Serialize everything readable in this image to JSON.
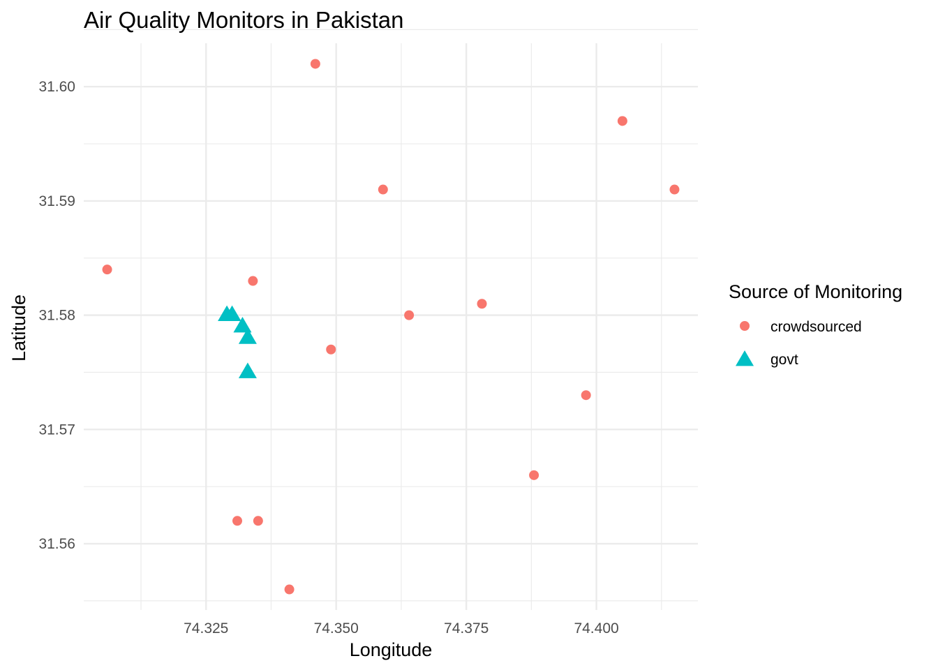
{
  "chart_data": {
    "type": "scatter",
    "title": "Air Quality Monitors in Pakistan",
    "xlabel": "Longitude",
    "ylabel": "Latitude",
    "xlim": [
      74.3015,
      74.4195
    ],
    "ylim": [
      31.5542,
      31.6038
    ],
    "x_ticks": [
      "74.325",
      "74.350",
      "74.375",
      "74.400"
    ],
    "y_ticks": [
      "31.56",
      "31.57",
      "31.58",
      "31.59",
      "31.60"
    ],
    "grid": true,
    "legend": {
      "title": "Source of Monitoring",
      "placement": "right"
    },
    "series": [
      {
        "name": "crowdsourced",
        "color": "#F8766D",
        "shape": "circle",
        "points": [
          {
            "x": 74.346,
            "y": 31.602
          },
          {
            "x": 74.405,
            "y": 31.597
          },
          {
            "x": 74.359,
            "y": 31.591
          },
          {
            "x": 74.415,
            "y": 31.591
          },
          {
            "x": 74.306,
            "y": 31.584
          },
          {
            "x": 74.334,
            "y": 31.583
          },
          {
            "x": 74.378,
            "y": 31.581
          },
          {
            "x": 74.364,
            "y": 31.58
          },
          {
            "x": 74.349,
            "y": 31.577
          },
          {
            "x": 74.398,
            "y": 31.573
          },
          {
            "x": 74.388,
            "y": 31.566
          },
          {
            "x": 74.331,
            "y": 31.562
          },
          {
            "x": 74.335,
            "y": 31.562
          },
          {
            "x": 74.341,
            "y": 31.556
          }
        ]
      },
      {
        "name": "govt",
        "color": "#00BFC4",
        "shape": "triangle",
        "points": [
          {
            "x": 74.329,
            "y": 31.58
          },
          {
            "x": 74.33,
            "y": 31.58
          },
          {
            "x": 74.332,
            "y": 31.579
          },
          {
            "x": 74.333,
            "y": 31.578
          },
          {
            "x": 74.333,
            "y": 31.575
          }
        ]
      }
    ]
  }
}
